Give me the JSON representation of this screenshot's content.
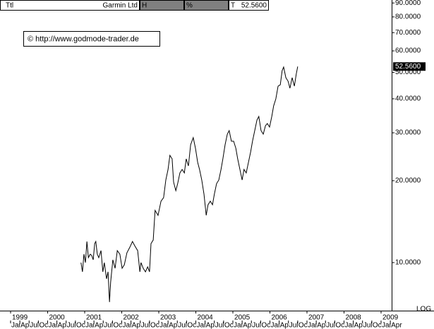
{
  "header": {
    "ttl": "Ttl",
    "name": "Garmin Ltd",
    "h": "H",
    "pct": "%",
    "t": "T",
    "t_value": "52.5600"
  },
  "chart_data": {
    "type": "line",
    "watermark": "© http://www.godmode-trader.de",
    "scale_label": "LOG",
    "log_y": true,
    "color": "#000000",
    "x": [
      2000.9,
      2000.94,
      2000.98,
      2001.02,
      2001.06,
      2001.1,
      2001.15,
      2001.19,
      2001.23,
      2001.27,
      2001.3,
      2001.34,
      2001.38,
      2001.44,
      2001.49,
      2001.53,
      2001.59,
      2001.63,
      2001.67,
      2001.7,
      2001.76,
      2001.82,
      2001.88,
      2001.95,
      2002.01,
      2002.07,
      2002.14,
      2002.22,
      2002.29,
      2002.35,
      2002.43,
      2002.49,
      2002.52,
      2002.58,
      2002.64,
      2002.7,
      2002.75,
      2002.79,
      2002.85,
      2002.9,
      2002.98,
      2003.06,
      2003.13,
      2003.19,
      2003.25,
      2003.3,
      2003.36,
      2003.4,
      2003.46,
      2003.51,
      2003.57,
      2003.63,
      2003.69,
      2003.74,
      2003.8,
      2003.86,
      2003.93,
      2003.99,
      2004.05,
      2004.1,
      2004.16,
      2004.22,
      2004.28,
      2004.33,
      2004.39,
      2004.45,
      2004.5,
      2004.56,
      2004.62,
      2004.68,
      2004.73,
      2004.79,
      2004.85,
      2004.9,
      2004.96,
      2005.02,
      2005.08,
      2005.13,
      2005.19,
      2005.25,
      2005.3,
      2005.36,
      2005.42,
      2005.48,
      2005.53,
      2005.59,
      2005.65,
      2005.7,
      2005.76,
      2005.82,
      2005.88,
      2005.93,
      2005.99,
      2006.05,
      2006.1,
      2006.16,
      2006.22,
      2006.28,
      2006.33,
      2006.37,
      2006.43,
      2006.49,
      2006.54,
      2006.6,
      2006.66,
      2006.71,
      2006.75
    ],
    "values": [
      10.0,
      9.25,
      10.74,
      10.0,
      11.96,
      10.43,
      10.74,
      10.62,
      10.24,
      11.75,
      11.96,
      10.74,
      10.43,
      11.07,
      9.25,
      10.0,
      8.72,
      9.25,
      7.16,
      8.46,
      10.24,
      9.53,
      11.07,
      10.74,
      9.53,
      9.82,
      10.87,
      11.4,
      11.96,
      11.54,
      11.07,
      9.25,
      10.0,
      9.53,
      9.25,
      9.65,
      9.25,
      11.75,
      12.11,
      15.56,
      14.92,
      16.82,
      17.33,
      20.12,
      22.0,
      24.79,
      24.06,
      19.76,
      18.39,
      19.52,
      21.36,
      22.0,
      21.36,
      24.06,
      22.67,
      27.12,
      28.79,
      26.32,
      23.36,
      22.0,
      20.12,
      17.85,
      14.92,
      16.32,
      16.82,
      16.32,
      17.85,
      19.52,
      20.12,
      22.0,
      24.06,
      27.12,
      29.66,
      30.56,
      27.94,
      27.94,
      26.32,
      24.06,
      22.0,
      20.12,
      22.0,
      21.36,
      23.36,
      25.55,
      27.94,
      30.56,
      33.42,
      34.44,
      30.56,
      29.66,
      31.87,
      32.44,
      31.49,
      34.44,
      37.66,
      39.99,
      44.52,
      45.05,
      50.78,
      52.33,
      47.83,
      46.42,
      43.75,
      47.83,
      44.52,
      49.28,
      52.56
    ],
    "last_price": {
      "value": 52.56,
      "label": "52.5600"
    },
    "xlim": [
      1998.714,
      2009.286
    ],
    "ylim": [
      6.66,
      92.3
    ],
    "xticks": [
      1999,
      2000,
      2001,
      2002,
      2003,
      2004,
      2005,
      2006,
      2007,
      2008,
      2009
    ],
    "month_ticks": [
      {
        "value": 1999.0,
        "label": "Jan"
      },
      {
        "value": 1999.25,
        "label": "Apr"
      },
      {
        "value": 1999.5,
        "label": "Jul"
      },
      {
        "value": 1999.75,
        "label": "Oct"
      },
      {
        "value": 2000.0,
        "label": "Jan"
      },
      {
        "value": 2000.25,
        "label": "Apr"
      },
      {
        "value": 2000.5,
        "label": "Jul"
      },
      {
        "value": 2000.75,
        "label": "Oct"
      },
      {
        "value": 2001.0,
        "label": "Jan"
      },
      {
        "value": 2001.25,
        "label": "Apr"
      },
      {
        "value": 2001.5,
        "label": "Jul"
      },
      {
        "value": 2001.75,
        "label": "Oct"
      },
      {
        "value": 2002.0,
        "label": "Jan"
      },
      {
        "value": 2002.25,
        "label": "Apr"
      },
      {
        "value": 2002.5,
        "label": "Jul"
      },
      {
        "value": 2002.75,
        "label": "Oct"
      },
      {
        "value": 2003.0,
        "label": "Jan"
      },
      {
        "value": 2003.25,
        "label": "Apr"
      },
      {
        "value": 2003.5,
        "label": "Jul"
      },
      {
        "value": 2003.75,
        "label": "Oct"
      },
      {
        "value": 2004.0,
        "label": "Jan"
      },
      {
        "value": 2004.25,
        "label": "Apr"
      },
      {
        "value": 2004.5,
        "label": "Jul"
      },
      {
        "value": 2004.75,
        "label": "Oct"
      },
      {
        "value": 2005.0,
        "label": "Jan"
      },
      {
        "value": 2005.25,
        "label": "Apr"
      },
      {
        "value": 2005.5,
        "label": "Jul"
      },
      {
        "value": 2005.75,
        "label": "Oct"
      },
      {
        "value": 2006.0,
        "label": "Jan"
      },
      {
        "value": 2006.25,
        "label": "Apr"
      },
      {
        "value": 2006.5,
        "label": "Jul"
      },
      {
        "value": 2006.75,
        "label": "Oct"
      },
      {
        "value": 2007.0,
        "label": "Jan"
      },
      {
        "value": 2007.25,
        "label": "Apr"
      },
      {
        "value": 2007.5,
        "label": "Jul"
      },
      {
        "value": 2007.75,
        "label": "Oct"
      },
      {
        "value": 2008.0,
        "label": "Jan"
      },
      {
        "value": 2008.25,
        "label": "Apr"
      },
      {
        "value": 2008.5,
        "label": "Jul"
      },
      {
        "value": 2008.75,
        "label": "Oct"
      },
      {
        "value": 2009.0,
        "label": "Jan"
      },
      {
        "value": 2009.25,
        "label": "Apr"
      }
    ],
    "yticks": [
      {
        "value": 10,
        "label": "10.0000"
      },
      {
        "value": 20,
        "label": "20.0000"
      },
      {
        "value": 30,
        "label": "30.0000"
      },
      {
        "value": 40,
        "label": "40.0000"
      },
      {
        "value": 50,
        "label": "50.0000"
      },
      {
        "value": 60,
        "label": "60.0000"
      },
      {
        "value": 70,
        "label": "70.0000"
      },
      {
        "value": 80,
        "label": "80.0000"
      },
      {
        "value": 90,
        "label": "90.0000"
      }
    ],
    "grid": false
  }
}
